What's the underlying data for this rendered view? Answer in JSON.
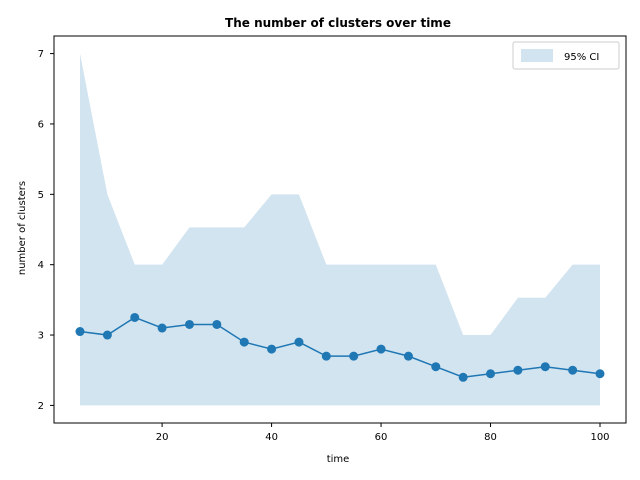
{
  "chart_data": {
    "type": "line",
    "title": "The number of clusters over time",
    "xlabel": "time",
    "ylabel": "number of clusters",
    "xlim": [
      0.25,
      104.75
    ],
    "ylim": [
      1.75,
      7.25
    ],
    "xticks": [
      20,
      40,
      60,
      80,
      100
    ],
    "yticks": [
      2,
      3,
      4,
      5,
      6,
      7
    ],
    "x": [
      5,
      10,
      15,
      20,
      25,
      30,
      35,
      40,
      45,
      50,
      55,
      60,
      65,
      70,
      75,
      80,
      85,
      90,
      95,
      100
    ],
    "series": [
      {
        "values": [
          3.05,
          3.0,
          3.25,
          3.1,
          3.15,
          3.15,
          2.9,
          2.8,
          2.9,
          2.7,
          2.7,
          2.8,
          2.7,
          2.55,
          2.4,
          2.45,
          2.5,
          2.55,
          2.5,
          2.45
        ],
        "color": "#1f77b4"
      }
    ],
    "band": {
      "name": "95% CI",
      "lower": [
        2,
        2,
        2,
        2,
        2,
        2,
        2,
        2,
        2,
        2,
        2,
        2,
        2,
        2,
        2,
        2,
        2,
        2,
        2,
        2
      ],
      "upper": [
        7.0,
        5.0,
        4.0,
        4.0,
        4.53,
        4.53,
        4.53,
        5.0,
        5.0,
        4.0,
        4.0,
        4.0,
        4.0,
        4.0,
        3.0,
        3.0,
        3.53,
        3.53,
        4.0,
        4.0
      ],
      "color": "#1f77b4",
      "alpha": 0.2
    },
    "legend_position": "upper right",
    "grid": false
  }
}
